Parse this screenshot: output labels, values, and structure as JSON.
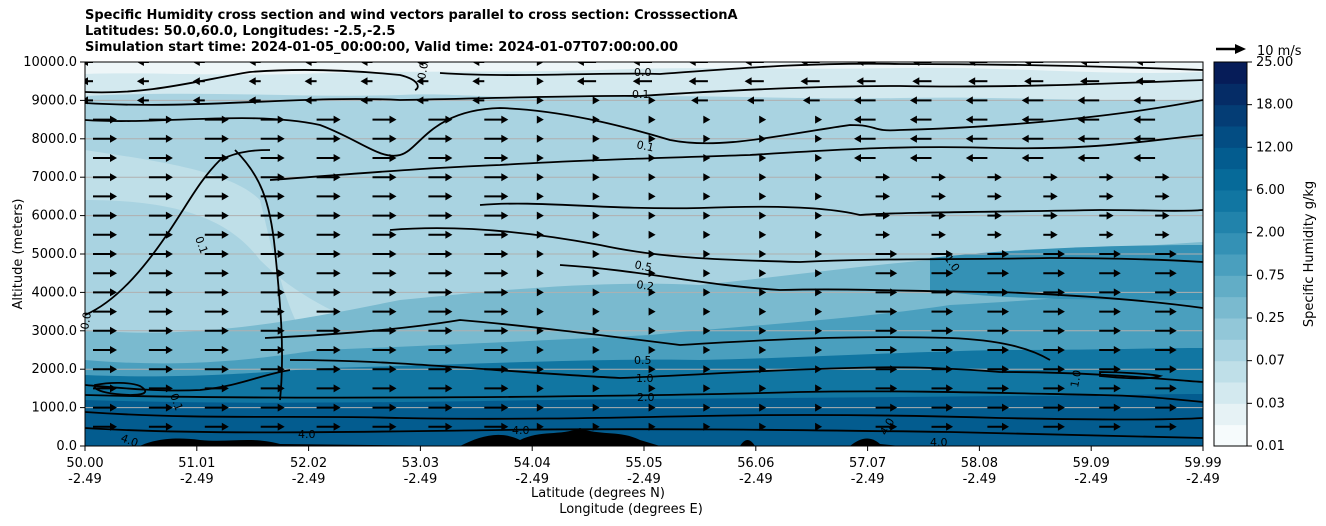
{
  "chart_data": {
    "type": "contour_cross_section",
    "title_lines": [
      "Specific Humidity cross section and wind vectors parallel to cross section: CrosssectionA",
      "Latitudes: 50.0,60.0, Longitudes: -2.5,-2.5",
      "Simulation start time: 2024-01-05_00:00:00, Valid time: 2024-01-07T07:00:00.00"
    ],
    "ylabel": "Altitude (meters)",
    "xlabel_lat": "Latitude (degrees N)",
    "xlabel_lon": "Longitude (degrees E)",
    "ylim": [
      0,
      10000
    ],
    "y_ticks": [
      "0.0",
      "1000.0",
      "2000.0",
      "3000.0",
      "4000.0",
      "5000.0",
      "6000.0",
      "7000.0",
      "8000.0",
      "9000.0",
      "10000.0"
    ],
    "x_ticks_lat": [
      "50.00",
      "51.01",
      "52.02",
      "53.03",
      "54.04",
      "55.05",
      "56.06",
      "57.07",
      "58.08",
      "59.09",
      "59.99"
    ],
    "x_ticks_lon": [
      "-2.49",
      "-2.49",
      "-2.49",
      "-2.49",
      "-2.49",
      "-2.49",
      "-2.49",
      "-2.49",
      "-2.49",
      "-2.49",
      "-2.49"
    ],
    "colorbar_label": "Specific Humidity g/kg",
    "colorbar_ticks": [
      "0.01",
      "0.03",
      "0.07",
      "0.25",
      "0.75",
      "2.00",
      "6.00",
      "12.00",
      "18.00",
      "25.00"
    ],
    "colorbar_colors": [
      "#f6fbfc",
      "#e6f2f5",
      "#d3e9ef",
      "#bfdfe8",
      "#a9d3e1",
      "#92c7d8",
      "#7abacf",
      "#62adc6",
      "#4a9fbe",
      "#3491b5",
      "#2183ab",
      "#1176a2",
      "#066a99",
      "#035c8f",
      "#034d83",
      "#043d75",
      "#052c66",
      "#061c58"
    ],
    "quiver_key_label": "10 m/s",
    "contour_labels": [
      "0.0",
      "0.0",
      "0.1",
      "0.1",
      "0.1",
      "0.5",
      "0.2",
      "1.0",
      "0.5",
      "1.0",
      "2.0",
      "4.0",
      "4.0",
      "4.0",
      "4.0",
      "4.0",
      "1.0",
      "0.1",
      "0.0"
    ],
    "humidity_bands_g_per_kg": [
      {
        "from_alt": 0,
        "to_alt": 1200,
        "value": 4.0
      },
      {
        "from_alt": 1200,
        "to_alt": 2000,
        "value": 1.5
      },
      {
        "from_alt": 2000,
        "to_alt": 4000,
        "value": 0.5
      },
      {
        "from_alt": 4000,
        "to_alt": 6500,
        "value": 0.25
      },
      {
        "from_alt": 6500,
        "to_alt": 9000,
        "value": 0.1
      },
      {
        "from_alt": 9000,
        "to_alt": 10000,
        "value": 0.03
      }
    ]
  }
}
